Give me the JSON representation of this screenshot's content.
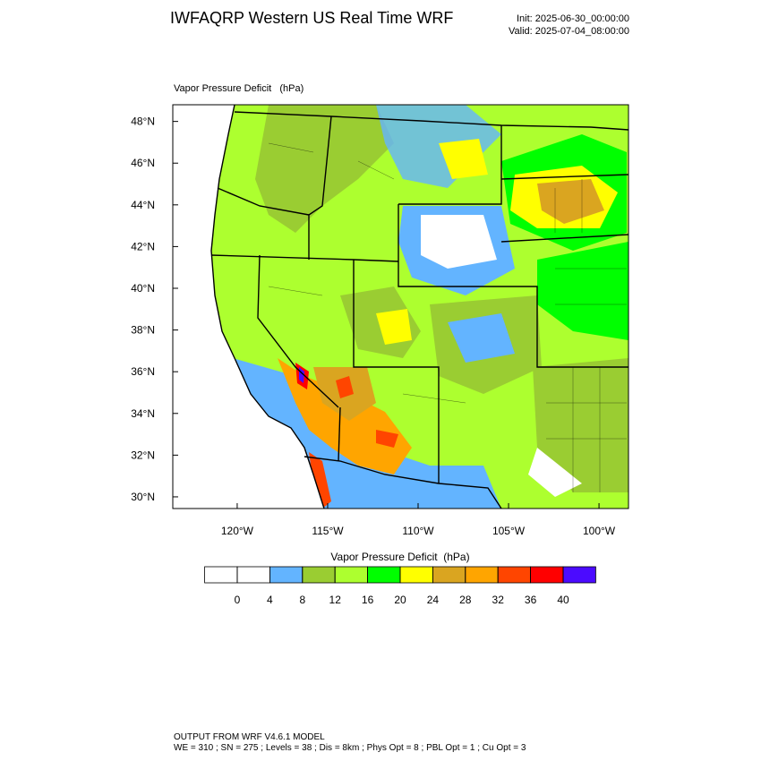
{
  "header": {
    "title": "IWFAQRP Western US Real Time WRF",
    "init": "Init: 2025-06-30_00:00:00",
    "valid": "Valid: 2025-07-04_08:00:00"
  },
  "map": {
    "field_label": "Vapor Pressure Deficit   (hPa)",
    "xlim": [
      -123.56,
      -98.37
    ],
    "ylim": [
      29.44,
      48.8
    ],
    "xticks": [
      {
        "value": -120,
        "label": "120°W"
      },
      {
        "value": -115,
        "label": "115°W"
      },
      {
        "value": -110,
        "label": "110°W"
      },
      {
        "value": -105,
        "label": "105°W"
      },
      {
        "value": -100,
        "label": "100°W"
      }
    ],
    "yticks": [
      {
        "value": 30,
        "label": "30°N"
      },
      {
        "value": 32,
        "label": "32°N"
      },
      {
        "value": 34,
        "label": "34°N"
      },
      {
        "value": 36,
        "label": "36°N"
      },
      {
        "value": 38,
        "label": "38°N"
      },
      {
        "value": 40,
        "label": "40°N"
      },
      {
        "value": 42,
        "label": "42°N"
      },
      {
        "value": 44,
        "label": "44°N"
      },
      {
        "value": 46,
        "label": "46°N"
      },
      {
        "value": 48,
        "label": "48°N"
      }
    ]
  },
  "colorbar": {
    "title": "Vapor Pressure Deficit  (hPa)",
    "levels": [
      0,
      4,
      8,
      12,
      16,
      20,
      24,
      28,
      32,
      36,
      40
    ],
    "colors": [
      "#ffffff",
      "#ffffff",
      "#63b4ff",
      "#9acd32",
      "#adff2f",
      "#00ff00",
      "#ffff00",
      "#daa520",
      "#ffa500",
      "#ff4500",
      "#ff0000",
      "#4b0bff"
    ]
  },
  "footer": {
    "line1": "OUTPUT FROM WRF V4.6.1 MODEL",
    "line2": "WE = 310 ; SN = 275 ; Levels = 38 ; Dis = 8km ; Phys Opt = 8 ; PBL Opt = 1 ; Cu Opt = 3"
  }
}
